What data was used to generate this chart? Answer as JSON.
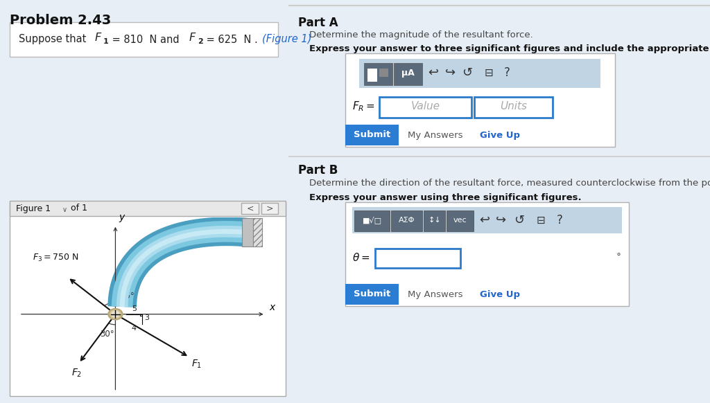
{
  "title": "Problem 2.43",
  "part_a_title": "Part A",
  "part_a_desc": "Determine the magnitude of the resultant force.",
  "part_a_bold": "Express your answer to three significant figures and include the appropriate units.",
  "part_b_title": "Part B",
  "part_b_desc": "Determine the direction of the resultant force, measured counterclockwise from the positive x axis.",
  "part_b_bold": "Express your answer using three significant figures.",
  "value_placeholder": "Value",
  "units_placeholder": "Units",
  "submit_text": "Submit",
  "my_answers_text": "My Answers",
  "give_up_text": "Give Up",
  "figure_label": "Figure 1",
  "of_label": "of 1",
  "bg_left": "#e8eef5",
  "bg_right": "#f7f8fa",
  "box_bg": "#ffffff",
  "toolbar_bg": "#b8ccd8",
  "blue_color": "#2266cc",
  "submit_bg": "#2b7dd4",
  "divider_color": "#bbbbbb",
  "icon_bg": "#6a7a8a",
  "pipe_outer": "#5bacc8",
  "pipe_mid": "#8dcce0",
  "pipe_inner": "#aadcee",
  "wall_color": "#b0b0b0",
  "wall_hatch": "#888888"
}
